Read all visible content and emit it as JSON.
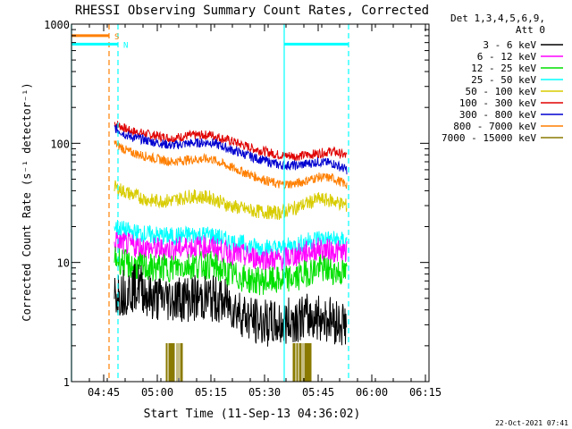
{
  "chart_data": {
    "type": "line",
    "title": "RHESSI Observing Summary Count Rates, Corrected",
    "xlabel": "Start Time (11-Sep-13 04:36:02)",
    "ylabel": "Corrected Count Rate (s⁻¹ detector⁻¹)",
    "yscale": "log",
    "ylim": [
      1,
      1000
    ],
    "xlim_minutes_after_0436": [
      0,
      100
    ],
    "xticks": [
      {
        "label": "04:45",
        "minute": 9
      },
      {
        "label": "05:00",
        "minute": 24
      },
      {
        "label": "05:15",
        "minute": 39
      },
      {
        "label": "05:30",
        "minute": 54
      },
      {
        "label": "05:45",
        "minute": 69
      },
      {
        "label": "06:00",
        "minute": 84
      },
      {
        "label": "06:15",
        "minute": 99
      }
    ],
    "yticks": [
      {
        "label": "1",
        "value": 1
      },
      {
        "label": "10",
        "value": 10
      },
      {
        "label": "100",
        "value": 100
      },
      {
        "label": "1000",
        "value": 1000
      }
    ],
    "legend": {
      "placement": "right",
      "header": [
        "Det 1,3,4,5,6,9,",
        "Att 0"
      ],
      "entries": [
        {
          "label": "3 - 6 keV",
          "color": "#000000"
        },
        {
          "label": "6 - 12 keV",
          "color": "#ff00ff"
        },
        {
          "label": "12 - 25 keV",
          "color": "#00e000"
        },
        {
          "label": "25 - 50 keV",
          "color": "#00ffff"
        },
        {
          "label": "50 - 100 keV",
          "color": "#d8cc00"
        },
        {
          "label": "100 - 300 keV",
          "color": "#e00000"
        },
        {
          "label": "300 - 800 keV",
          "color": "#0000d0"
        },
        {
          "label": "800 - 7000 keV",
          "color": "#ff7f00"
        },
        {
          "label": "7000 - 15000 keV",
          "color": "#8a7a00"
        }
      ]
    },
    "flags": [
      {
        "label": "S",
        "color": "#ff7f00",
        "value": 800,
        "x_start": 0,
        "x_end": 10.5
      },
      {
        "label": "N",
        "color": "#00ffff",
        "value": 680,
        "x_start": 0,
        "x_end": 13,
        "x_start2": 59.5,
        "x_end2": 77.5
      }
    ],
    "vertical_markers": [
      {
        "minute": 0,
        "color": "#00ffff",
        "style": "solid"
      },
      {
        "minute": 10.5,
        "color": "#ff7f00",
        "style": "dashed"
      },
      {
        "minute": 13,
        "color": "#00ffff",
        "style": "dashed"
      },
      {
        "minute": 59.5,
        "color": "#00ffff",
        "style": "solid"
      },
      {
        "minute": 77.5,
        "color": "#00ffff",
        "style": "dashed"
      }
    ],
    "series": [
      {
        "color": "#e00000",
        "noise": 0.04,
        "x_range": [
          12,
          77
        ],
        "points": [
          [
            12,
            148
          ],
          [
            16,
            128
          ],
          [
            22,
            118
          ],
          [
            28,
            110
          ],
          [
            33,
            116
          ],
          [
            39,
            118
          ],
          [
            44,
            106
          ],
          [
            51,
            90
          ],
          [
            58,
            80
          ],
          [
            63,
            78
          ],
          [
            69,
            82
          ],
          [
            73,
            86
          ],
          [
            77,
            78
          ]
        ]
      },
      {
        "color": "#0000d0",
        "noise": 0.04,
        "x_range": [
          12,
          77
        ],
        "points": [
          [
            12,
            135
          ],
          [
            16,
            115
          ],
          [
            22,
            104
          ],
          [
            28,
            96
          ],
          [
            33,
            100
          ],
          [
            39,
            102
          ],
          [
            44,
            90
          ],
          [
            51,
            76
          ],
          [
            58,
            66
          ],
          [
            63,
            65
          ],
          [
            69,
            70
          ],
          [
            73,
            68
          ],
          [
            77,
            60
          ]
        ]
      },
      {
        "color": "#ff7f00",
        "noise": 0.04,
        "x_range": [
          12,
          77
        ],
        "points": [
          [
            12,
            100
          ],
          [
            16,
            85
          ],
          [
            22,
            76
          ],
          [
            28,
            70
          ],
          [
            33,
            73
          ],
          [
            39,
            74
          ],
          [
            44,
            64
          ],
          [
            51,
            53
          ],
          [
            58,
            45
          ],
          [
            63,
            46
          ],
          [
            69,
            52
          ],
          [
            73,
            51
          ],
          [
            77,
            45
          ]
        ]
      },
      {
        "color": "#d8cc00",
        "noise": 0.06,
        "x_range": [
          12,
          77
        ],
        "points": [
          [
            12,
            43
          ],
          [
            16,
            38
          ],
          [
            22,
            33
          ],
          [
            28,
            33
          ],
          [
            33,
            36
          ],
          [
            39,
            35
          ],
          [
            44,
            30
          ],
          [
            51,
            27
          ],
          [
            58,
            26
          ],
          [
            63,
            29
          ],
          [
            69,
            34
          ],
          [
            73,
            33
          ],
          [
            77,
            30
          ]
        ]
      },
      {
        "color": "#00ffff",
        "noise": 0.08,
        "x_range": [
          12,
          77
        ],
        "points": [
          [
            12,
            20
          ],
          [
            16,
            18
          ],
          [
            22,
            17
          ],
          [
            28,
            16.5
          ],
          [
            33,
            17
          ],
          [
            39,
            17
          ],
          [
            44,
            15
          ],
          [
            51,
            13.5
          ],
          [
            58,
            13
          ],
          [
            63,
            14
          ],
          [
            69,
            16
          ],
          [
            73,
            15.5
          ],
          [
            77,
            15
          ]
        ]
      },
      {
        "color": "#ff00ff",
        "noise": 0.1,
        "x_range": [
          12,
          77
        ],
        "points": [
          [
            12,
            15
          ],
          [
            16,
            14
          ],
          [
            22,
            13
          ],
          [
            28,
            13
          ],
          [
            33,
            13.5
          ],
          [
            39,
            13.5
          ],
          [
            44,
            12
          ],
          [
            51,
            11
          ],
          [
            58,
            10.5
          ],
          [
            63,
            11.5
          ],
          [
            69,
            13
          ],
          [
            73,
            12.5
          ],
          [
            77,
            12
          ]
        ]
      },
      {
        "color": "#00e000",
        "noise": 0.12,
        "x_range": [
          12,
          77
        ],
        "points": [
          [
            12,
            11
          ],
          [
            16,
            9.5
          ],
          [
            22,
            9
          ],
          [
            28,
            9
          ],
          [
            33,
            9.5
          ],
          [
            39,
            9.5
          ],
          [
            44,
            8
          ],
          [
            51,
            7
          ],
          [
            58,
            7
          ],
          [
            63,
            7.5
          ],
          [
            69,
            9
          ],
          [
            73,
            8.5
          ],
          [
            77,
            8
          ]
        ]
      },
      {
        "color": "#000000",
        "noise": 0.2,
        "x_range": [
          12,
          77
        ],
        "points": [
          [
            12,
            5.5
          ],
          [
            16,
            5.8
          ],
          [
            19,
            6.5
          ],
          [
            22,
            5
          ],
          [
            28,
            5
          ],
          [
            33,
            5
          ],
          [
            39,
            5
          ],
          [
            44,
            4.5
          ],
          [
            51,
            3.2
          ],
          [
            58,
            3
          ],
          [
            63,
            3.4
          ],
          [
            69,
            3.5
          ],
          [
            73,
            3.3
          ],
          [
            77,
            3
          ]
        ]
      }
    ],
    "bursts": [
      {
        "color": "#8a7a00",
        "x_range": [
          26.5,
          31.5
        ],
        "value": 2.1
      },
      {
        "color": "#8a7a00",
        "x_range": [
          62,
          67
        ],
        "value": 2.1
      }
    ],
    "timestamp": "22-Oct-2021 07:41"
  }
}
